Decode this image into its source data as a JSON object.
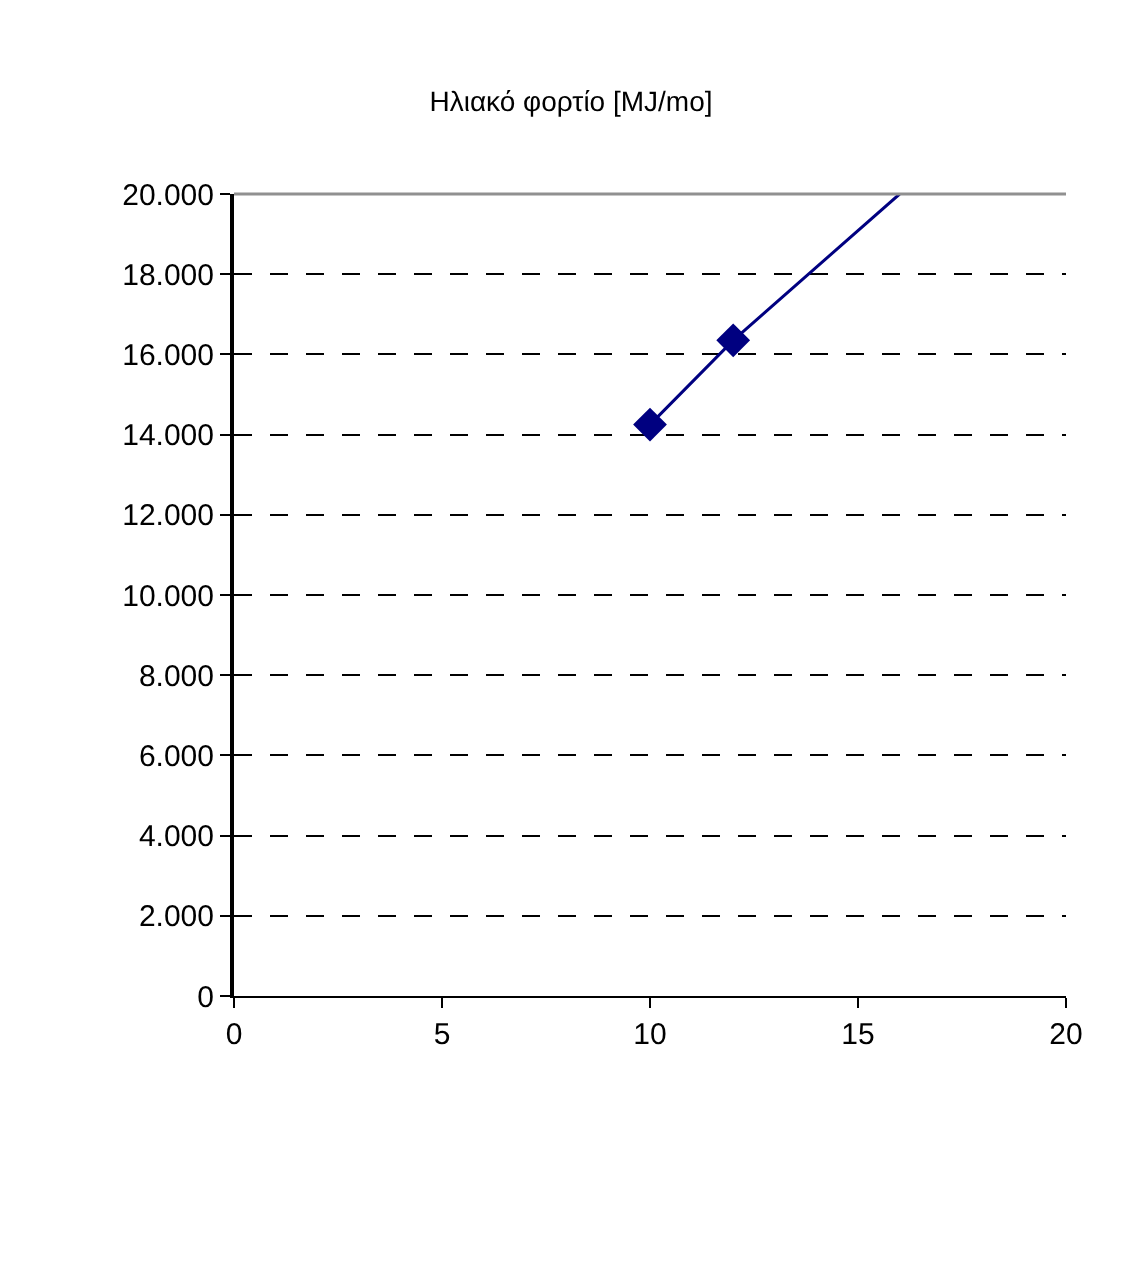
{
  "chart_data": {
    "type": "line",
    "title": "Ηλιακό φορτίο [MJ/mo]",
    "series": [
      {
        "color": "#000080",
        "x": [
          10,
          12,
          16
        ],
        "values": [
          14250,
          16350,
          20000
        ],
        "marker": "none"
      },
      {
        "type": "scatter",
        "color": "#000080",
        "x": [
          10,
          12
        ],
        "values": [
          14250,
          16350
        ],
        "marker": "diamond"
      }
    ],
    "xlim": [
      0,
      20
    ],
    "xticks": [
      0,
      5,
      10,
      15,
      20
    ],
    "ylim": [
      0,
      20000
    ],
    "yticks": [
      0,
      {
        "value": 2000,
        "label": "2.000"
      },
      {
        "value": 4000,
        "label": "4.000"
      },
      {
        "value": 6000,
        "label": "6.000"
      },
      {
        "value": 8000,
        "label": "8.000"
      },
      {
        "value": 10000,
        "label": "10.000"
      },
      {
        "value": 12000,
        "label": "12.000"
      },
      {
        "value": 14000,
        "label": "14.000"
      },
      {
        "value": 16000,
        "label": "16.000"
      },
      {
        "value": 18000,
        "label": "18.000"
      },
      {
        "value": 20000,
        "label": "20.000"
      }
    ],
    "grid": "y"
  }
}
